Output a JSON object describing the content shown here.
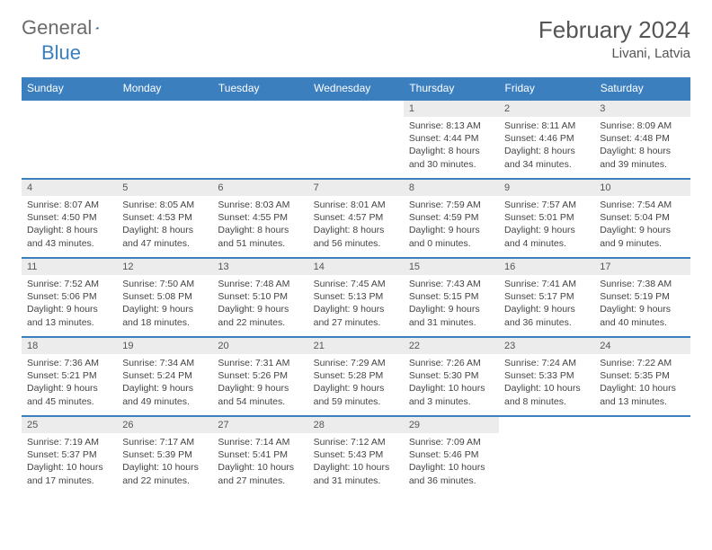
{
  "brand": {
    "part1": "General",
    "part2": "Blue"
  },
  "title": "February 2024",
  "location": "Livani, Latvia",
  "colors": {
    "accent": "#3b7fbf",
    "daybg": "#ececec",
    "text": "#444"
  },
  "weekdays": [
    "Sunday",
    "Monday",
    "Tuesday",
    "Wednesday",
    "Thursday",
    "Friday",
    "Saturday"
  ],
  "grid": [
    [
      null,
      null,
      null,
      null,
      {
        "n": "1",
        "sr": "8:13 AM",
        "ss": "4:44 PM",
        "dl": "8 hours and 30 minutes."
      },
      {
        "n": "2",
        "sr": "8:11 AM",
        "ss": "4:46 PM",
        "dl": "8 hours and 34 minutes."
      },
      {
        "n": "3",
        "sr": "8:09 AM",
        "ss": "4:48 PM",
        "dl": "8 hours and 39 minutes."
      }
    ],
    [
      {
        "n": "4",
        "sr": "8:07 AM",
        "ss": "4:50 PM",
        "dl": "8 hours and 43 minutes."
      },
      {
        "n": "5",
        "sr": "8:05 AM",
        "ss": "4:53 PM",
        "dl": "8 hours and 47 minutes."
      },
      {
        "n": "6",
        "sr": "8:03 AM",
        "ss": "4:55 PM",
        "dl": "8 hours and 51 minutes."
      },
      {
        "n": "7",
        "sr": "8:01 AM",
        "ss": "4:57 PM",
        "dl": "8 hours and 56 minutes."
      },
      {
        "n": "8",
        "sr": "7:59 AM",
        "ss": "4:59 PM",
        "dl": "9 hours and 0 minutes."
      },
      {
        "n": "9",
        "sr": "7:57 AM",
        "ss": "5:01 PM",
        "dl": "9 hours and 4 minutes."
      },
      {
        "n": "10",
        "sr": "7:54 AM",
        "ss": "5:04 PM",
        "dl": "9 hours and 9 minutes."
      }
    ],
    [
      {
        "n": "11",
        "sr": "7:52 AM",
        "ss": "5:06 PM",
        "dl": "9 hours and 13 minutes."
      },
      {
        "n": "12",
        "sr": "7:50 AM",
        "ss": "5:08 PM",
        "dl": "9 hours and 18 minutes."
      },
      {
        "n": "13",
        "sr": "7:48 AM",
        "ss": "5:10 PM",
        "dl": "9 hours and 22 minutes."
      },
      {
        "n": "14",
        "sr": "7:45 AM",
        "ss": "5:13 PM",
        "dl": "9 hours and 27 minutes."
      },
      {
        "n": "15",
        "sr": "7:43 AM",
        "ss": "5:15 PM",
        "dl": "9 hours and 31 minutes."
      },
      {
        "n": "16",
        "sr": "7:41 AM",
        "ss": "5:17 PM",
        "dl": "9 hours and 36 minutes."
      },
      {
        "n": "17",
        "sr": "7:38 AM",
        "ss": "5:19 PM",
        "dl": "9 hours and 40 minutes."
      }
    ],
    [
      {
        "n": "18",
        "sr": "7:36 AM",
        "ss": "5:21 PM",
        "dl": "9 hours and 45 minutes."
      },
      {
        "n": "19",
        "sr": "7:34 AM",
        "ss": "5:24 PM",
        "dl": "9 hours and 49 minutes."
      },
      {
        "n": "20",
        "sr": "7:31 AM",
        "ss": "5:26 PM",
        "dl": "9 hours and 54 minutes."
      },
      {
        "n": "21",
        "sr": "7:29 AM",
        "ss": "5:28 PM",
        "dl": "9 hours and 59 minutes."
      },
      {
        "n": "22",
        "sr": "7:26 AM",
        "ss": "5:30 PM",
        "dl": "10 hours and 3 minutes."
      },
      {
        "n": "23",
        "sr": "7:24 AM",
        "ss": "5:33 PM",
        "dl": "10 hours and 8 minutes."
      },
      {
        "n": "24",
        "sr": "7:22 AM",
        "ss": "5:35 PM",
        "dl": "10 hours and 13 minutes."
      }
    ],
    [
      {
        "n": "25",
        "sr": "7:19 AM",
        "ss": "5:37 PM",
        "dl": "10 hours and 17 minutes."
      },
      {
        "n": "26",
        "sr": "7:17 AM",
        "ss": "5:39 PM",
        "dl": "10 hours and 22 minutes."
      },
      {
        "n": "27",
        "sr": "7:14 AM",
        "ss": "5:41 PM",
        "dl": "10 hours and 27 minutes."
      },
      {
        "n": "28",
        "sr": "7:12 AM",
        "ss": "5:43 PM",
        "dl": "10 hours and 31 minutes."
      },
      {
        "n": "29",
        "sr": "7:09 AM",
        "ss": "5:46 PM",
        "dl": "10 hours and 36 minutes."
      },
      null,
      null
    ]
  ],
  "labels": {
    "sunrise": "Sunrise:",
    "sunset": "Sunset:",
    "daylight": "Daylight:"
  }
}
